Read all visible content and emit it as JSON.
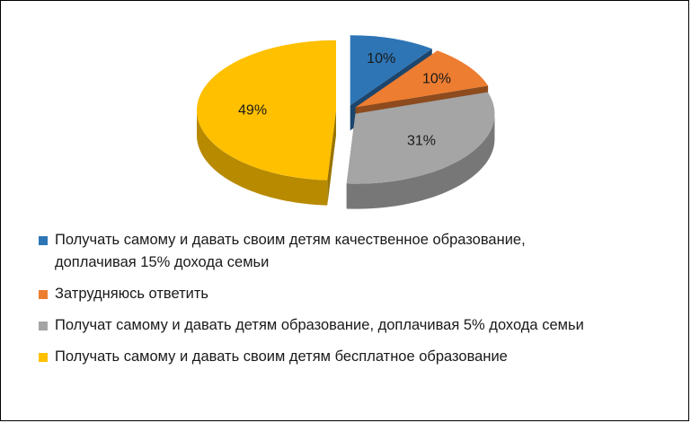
{
  "chart_data": {
    "type": "pie",
    "title": "",
    "slices": [
      {
        "label": "Получать самому и давать своим детям качественное образование, доплачивая 15% дохода семьи",
        "value": 10,
        "data_label": "10%",
        "color": "#2E75B6"
      },
      {
        "label": "Затрудняюсь ответить",
        "value": 10,
        "data_label": "10%",
        "color": "#ED7D31"
      },
      {
        "label": "Получат самому и давать детям образование, доплачивая 5% дохода семьи",
        "value": 31,
        "data_label": "31%",
        "color": "#A5A5A5"
      },
      {
        "label": "Получать самому и давать своим детям бесплатное образование",
        "value": 49,
        "data_label": "49%",
        "color": "#FFC000"
      }
    ],
    "legend_position": "bottom",
    "style": "3d-exploded"
  },
  "legend": {
    "item1_line1": "Получать самому и давать своим детям качественное образование,",
    "item1_line2": "доплачивая 15% дохода семьи",
    "item2": "Затрудняюсь ответить",
    "item3": "Получат самому и давать детям образование, доплачивая 5% дохода семьи",
    "item4": "Получать самому и давать своим детям бесплатное образование"
  }
}
